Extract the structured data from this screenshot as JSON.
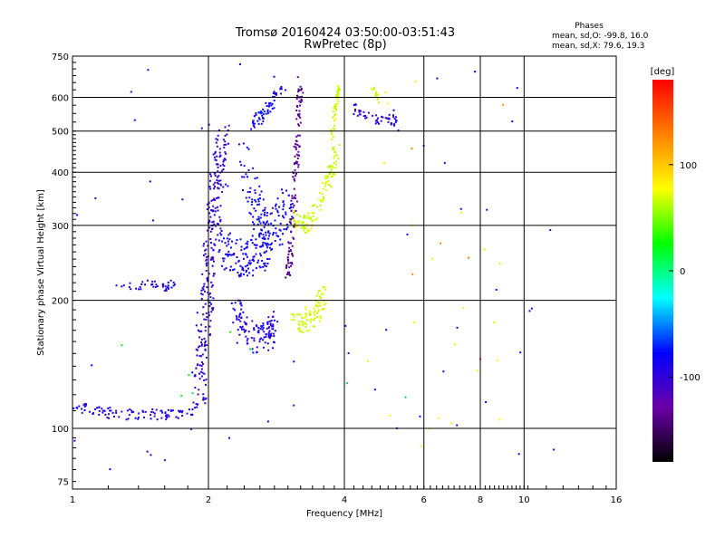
{
  "chart_data": {
    "type": "scatter",
    "title": "Tromsø 20160424 03:50:00-03:51:43",
    "subtitle": "RwPretec (8p)",
    "xlabel": "Frequency [MHz]",
    "ylabel": "Stationary phase Virtual Height [km]",
    "x_scale": "log",
    "y_scale": "log",
    "xlim": [
      1,
      16
    ],
    "ylim": [
      72,
      750
    ],
    "x_ticks": [
      1,
      2,
      4,
      6,
      8,
      10,
      16
    ],
    "y_ticks": [
      75,
      100,
      200,
      300,
      400,
      500,
      600,
      750
    ],
    "grid": true,
    "phases": {
      "title": "Phases",
      "line_o": "mean, sd,O: -99.8, 16.0",
      "line_x": "mean, sd,X:  79.6, 19.3"
    },
    "colorbar": {
      "label": "[deg]",
      "range": [
        -180,
        180
      ],
      "ticks": [
        100,
        0,
        -100
      ],
      "colors": [
        "#000000",
        "#6a00a8",
        "#0000ff",
        "#00ffff",
        "#00ff00",
        "#ffff00",
        "#ff8000",
        "#ff0000"
      ]
    },
    "traces": [
      {
        "kind": "band",
        "x": [
          1.0,
          1.1,
          1.25,
          1.4,
          1.6,
          1.78,
          1.9
        ],
        "y": [
          113,
          110,
          108,
          108,
          108,
          109,
          113
        ],
        "spread": 0.03,
        "phase": -105,
        "n": 100
      },
      {
        "kind": "band",
        "x": [
          1.25,
          1.4,
          1.5,
          1.6,
          1.7
        ],
        "y": [
          218,
          216,
          218,
          214,
          220
        ],
        "spread": 0.025,
        "phase": -105,
        "n": 40
      },
      {
        "kind": "band",
        "x": [
          1.9,
          1.95,
          2.0,
          2.05,
          2.1,
          2.15
        ],
        "y": [
          120,
          160,
          220,
          300,
          380,
          470
        ],
        "spread": 0.12,
        "phase": -110,
        "n": 260
      },
      {
        "kind": "band",
        "x": [
          2.1,
          2.25,
          2.4,
          2.55,
          2.7
        ],
        "y": [
          270,
          255,
          250,
          255,
          270
        ],
        "spread": 0.1,
        "phase": -98,
        "n": 130
      },
      {
        "kind": "band",
        "x": [
          2.3,
          2.4,
          2.55,
          2.7,
          2.8
        ],
        "y": [
          190,
          170,
          160,
          165,
          175
        ],
        "spread": 0.08,
        "phase": -105,
        "n": 120
      },
      {
        "kind": "band",
        "x": [
          2.4,
          2.55,
          2.7,
          2.85,
          3.0
        ],
        "y": [
          420,
          320,
          290,
          300,
          330
        ],
        "spread": 0.12,
        "phase": -95,
        "n": 150
      },
      {
        "kind": "band",
        "x": [
          2.5,
          2.62,
          2.75,
          2.9
        ],
        "y": [
          520,
          540,
          580,
          635
        ],
        "spread": 0.04,
        "phase": -95,
        "n": 60
      },
      {
        "kind": "band",
        "x": [
          3.0,
          3.08,
          3.15,
          3.2
        ],
        "y": [
          220,
          320,
          460,
          640
        ],
        "spread": 0.05,
        "phase": -140,
        "n": 130
      },
      {
        "kind": "band",
        "x": [
          3.1,
          3.3,
          3.5,
          3.7,
          3.85
        ],
        "y": [
          310,
          300,
          330,
          390,
          450
        ],
        "spread": 0.05,
        "phase": 80,
        "n": 120
      },
      {
        "kind": "band",
        "x": [
          3.75,
          3.8,
          3.85,
          3.9
        ],
        "y": [
          470,
          540,
          600,
          640
        ],
        "spread": 0.03,
        "phase": 80,
        "n": 45
      },
      {
        "kind": "band",
        "x": [
          3.1,
          3.3,
          3.5,
          3.6
        ],
        "y": [
          175,
          180,
          190,
          210
        ],
        "spread": 0.06,
        "phase": 80,
        "n": 90
      },
      {
        "kind": "band",
        "x": [
          4.2,
          4.4,
          4.7,
          5.0,
          5.3
        ],
        "y": [
          565,
          545,
          535,
          540,
          520
        ],
        "spread": 0.03,
        "phase": -110,
        "n": 50
      },
      {
        "kind": "band",
        "x": [
          4.6,
          4.7,
          4.8
        ],
        "y": [
          640,
          610,
          570
        ],
        "spread": 0.02,
        "phase": 80,
        "n": 15
      },
      {
        "kind": "scatter",
        "xlim": [
          1.0,
          12.0
        ],
        "ylim": [
          80,
          720
        ],
        "phase": -100,
        "n": 60
      },
      {
        "kind": "scatter",
        "xlim": [
          4.5,
          9.0
        ],
        "ylim": [
          90,
          680
        ],
        "phase": 90,
        "n": 22
      },
      {
        "kind": "scatter",
        "xlim": [
          4.5,
          9.0
        ],
        "ylim": [
          85,
          600
        ],
        "phase": 150,
        "n": 6
      },
      {
        "kind": "scatter",
        "xlim": [
          1.2,
          7.0
        ],
        "ylim": [
          110,
          350
        ],
        "phase": -10,
        "n": 8
      }
    ]
  }
}
